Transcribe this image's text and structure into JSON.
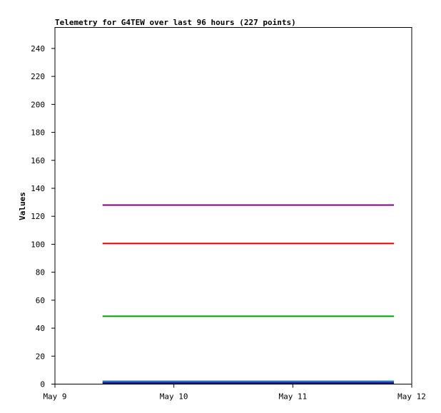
{
  "chart_data": {
    "type": "line",
    "title": "Telemetry for G4TEW over last 96 hours (227 points)",
    "xlabel": "",
    "ylabel": "Values",
    "x_ticks": [
      "May 9",
      "May 10",
      "May 11",
      "May 12"
    ],
    "xlim": [
      0,
      3
    ],
    "y_ticks": [
      0,
      20,
      40,
      60,
      80,
      100,
      120,
      140,
      160,
      180,
      200,
      220,
      240
    ],
    "ylim": [
      0,
      255
    ],
    "grid": false,
    "series": [
      {
        "color": "#800080",
        "x": [
          0.4,
          2.85
        ],
        "y": [
          128,
          128
        ]
      },
      {
        "color": "#dd0000",
        "x": [
          0.4,
          2.85
        ],
        "y": [
          100.5,
          100.5
        ]
      },
      {
        "color": "#00a000",
        "x": [
          0.4,
          2.85
        ],
        "y": [
          48.5,
          48.5
        ]
      },
      {
        "color": "#0060c0",
        "x": [
          0.4,
          2.85
        ],
        "y": [
          2,
          2
        ]
      },
      {
        "color": "#000080",
        "x": [
          0.4,
          2.85
        ],
        "y": [
          0.8,
          0.8
        ]
      }
    ]
  }
}
